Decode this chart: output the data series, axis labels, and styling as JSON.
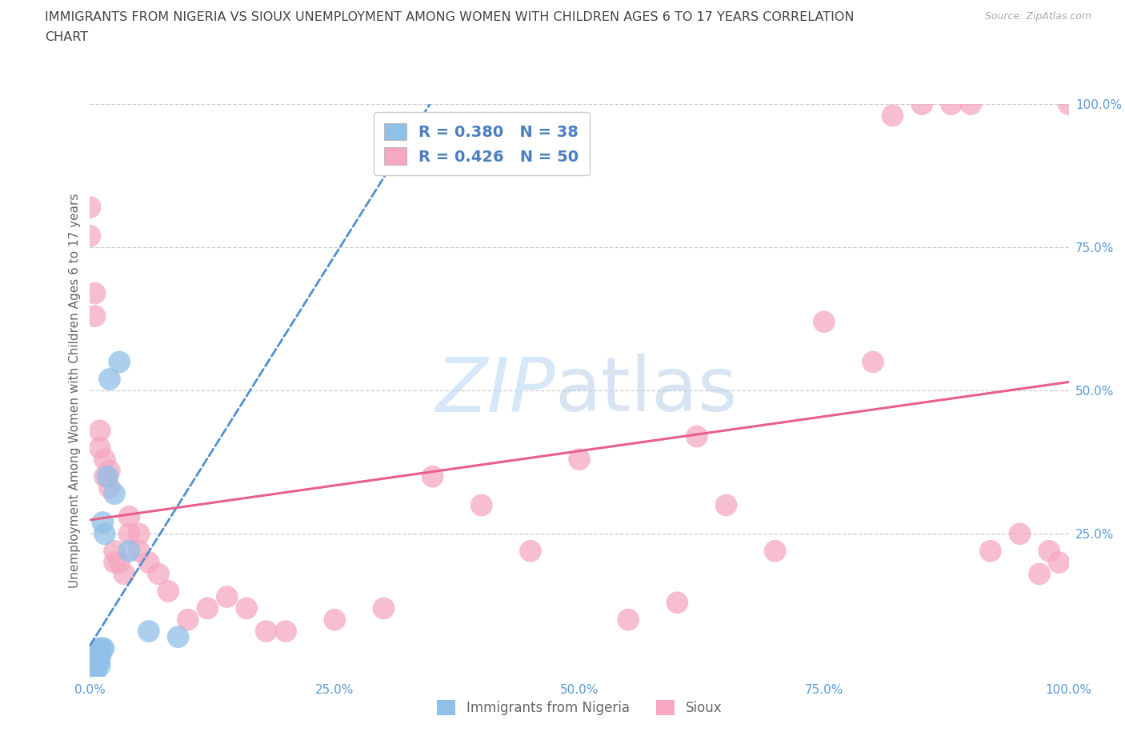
{
  "title_line1": "IMMIGRANTS FROM NIGERIA VS SIOUX UNEMPLOYMENT AMONG WOMEN WITH CHILDREN AGES 6 TO 17 YEARS CORRELATION",
  "title_line2": "CHART",
  "source": "Source: ZipAtlas.com",
  "ylabel": "Unemployment Among Women with Children Ages 6 to 17 years",
  "watermark_zip": "ZIP",
  "watermark_atlas": "atlas",
  "nigeria_R": 0.38,
  "nigeria_N": 38,
  "sioux_R": 0.426,
  "sioux_N": 50,
  "nigeria_color": "#90c0e8",
  "sioux_color": "#f5a8bf",
  "nigeria_line_color": "#5090d0",
  "sioux_line_color": "#e8608a",
  "nigeria_scatter_x": [
    0.0,
    0.0,
    0.001,
    0.002,
    0.002,
    0.003,
    0.003,
    0.003,
    0.004,
    0.004,
    0.004,
    0.005,
    0.005,
    0.005,
    0.006,
    0.006,
    0.007,
    0.007,
    0.007,
    0.008,
    0.008,
    0.009,
    0.009,
    0.01,
    0.01,
    0.01,
    0.011,
    0.012,
    0.013,
    0.014,
    0.015,
    0.018,
    0.02,
    0.025,
    0.03,
    0.04,
    0.06,
    0.09
  ],
  "nigeria_scatter_y": [
    0.01,
    0.02,
    0.01,
    0.01,
    0.02,
    0.01,
    0.02,
    0.03,
    0.01,
    0.02,
    0.03,
    0.02,
    0.03,
    0.04,
    0.01,
    0.03,
    0.02,
    0.03,
    0.04,
    0.03,
    0.04,
    0.03,
    0.04,
    0.02,
    0.03,
    0.05,
    0.04,
    0.05,
    0.27,
    0.05,
    0.25,
    0.35,
    0.52,
    0.32,
    0.55,
    0.22,
    0.08,
    0.07
  ],
  "sioux_scatter_x": [
    0.0,
    0.0,
    0.005,
    0.005,
    0.01,
    0.01,
    0.015,
    0.015,
    0.02,
    0.02,
    0.025,
    0.025,
    0.03,
    0.035,
    0.04,
    0.04,
    0.05,
    0.05,
    0.06,
    0.07,
    0.08,
    0.1,
    0.12,
    0.14,
    0.16,
    0.18,
    0.2,
    0.25,
    0.3,
    0.35,
    0.4,
    0.45,
    0.5,
    0.55,
    0.6,
    0.62,
    0.65,
    0.7,
    0.75,
    0.8,
    0.82,
    0.85,
    0.88,
    0.9,
    0.92,
    0.95,
    0.97,
    0.98,
    0.99,
    1.0
  ],
  "sioux_scatter_y": [
    0.77,
    0.82,
    0.63,
    0.67,
    0.4,
    0.43,
    0.35,
    0.38,
    0.33,
    0.36,
    0.2,
    0.22,
    0.2,
    0.18,
    0.25,
    0.28,
    0.22,
    0.25,
    0.2,
    0.18,
    0.15,
    0.1,
    0.12,
    0.14,
    0.12,
    0.08,
    0.08,
    0.1,
    0.12,
    0.35,
    0.3,
    0.22,
    0.38,
    0.1,
    0.13,
    0.42,
    0.3,
    0.22,
    0.62,
    0.55,
    0.98,
    1.0,
    1.0,
    1.0,
    0.22,
    0.25,
    0.18,
    0.22,
    0.2,
    1.0
  ],
  "xlim": [
    0.0,
    1.0
  ],
  "ylim": [
    0.0,
    1.0
  ],
  "xticks": [
    0.0,
    0.25,
    0.5,
    0.75,
    1.0
  ],
  "yticks": [
    0.25,
    0.5,
    0.75,
    1.0
  ],
  "xticklabels": [
    "0.0%",
    "25.0%",
    "50.0%",
    "75.0%",
    "100.0%"
  ],
  "yticklabels": [
    "25.0%",
    "50.0%",
    "75.0%",
    "100.0%"
  ],
  "grid_color": "#cccccc",
  "title_color": "#444444",
  "source_color": "#aaaaaa",
  "tick_color": "#5a9bd5",
  "label_color": "#666666",
  "legend_text_color": "#4a7fc1",
  "bg_color": "#ffffff"
}
